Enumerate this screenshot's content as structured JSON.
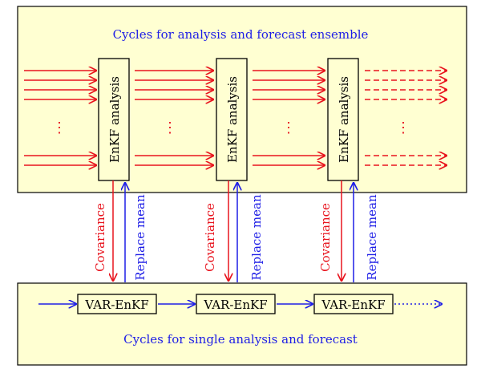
{
  "top_panel": {
    "title": "Cycles for analysis and forecast ensemble",
    "analysis_label": "EnKF analysis",
    "ellipsis": "⋮"
  },
  "bottom_panel": {
    "title": "Cycles for single analysis and forecast",
    "var_label": "VAR-EnKF"
  },
  "connector_labels": {
    "covariance": "Covariance",
    "replace_mean": "Replace mean"
  },
  "colors": {
    "panel_fill": "#ffffd2",
    "panel_border": "#000000",
    "red": "#e8141e",
    "blue": "#1e1ee6",
    "box_fill": "#ffffd2"
  }
}
